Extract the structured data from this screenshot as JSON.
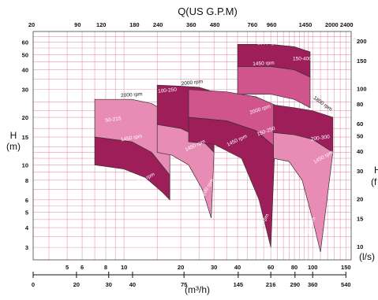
{
  "chart_data": {
    "type": "area",
    "title": "Q(US G.P.M)",
    "left_axis": {
      "label_line1": "H",
      "label_line2": "(m)",
      "scale": "log",
      "range": [
        2.5,
        70
      ],
      "ticks": [
        3,
        4,
        5,
        6,
        8,
        10,
        15,
        20,
        30,
        40,
        50,
        60
      ]
    },
    "right_axis": {
      "label_line1": "H",
      "label_line2": "(f",
      "scale": "log",
      "ticks": [
        10,
        15,
        20,
        30,
        40,
        50,
        60,
        80,
        100,
        150,
        200
      ]
    },
    "top_axis": {
      "scale": "log",
      "ticks": [
        20,
        90,
        120,
        180,
        240,
        360,
        480,
        760,
        960,
        1450,
        2000,
        2400
      ]
    },
    "bottom_axis_ls": {
      "label": "(l/s)",
      "scale": "log",
      "range": [
        3.3,
        160
      ],
      "ticks": [
        5,
        6,
        8,
        10,
        20,
        30,
        40,
        60,
        80,
        100,
        150
      ]
    },
    "bottom_axis_m3h": {
      "label": "(m³/h)",
      "ticks": [
        "0",
        "20",
        "30",
        "40",
        "75",
        "145",
        "216",
        "290",
        "360",
        "540"
      ],
      "tick_values_ls": [
        3.3,
        5.6,
        8.3,
        11.1,
        20.8,
        40.3,
        60,
        80.6,
        100,
        150
      ]
    },
    "colors": {
      "dark": "#9e1e5a",
      "mid": "#d1558d",
      "light": "#e88cb6",
      "grid": "#d14a7a"
    },
    "pumps": [
      {
        "model": "50-215",
        "zones": [
          {
            "rpm": "2000 rpm",
            "color": "light",
            "top": [
              [
                7,
                26
              ],
              [
                11,
                26
              ],
              [
                14,
                24.5
              ],
              [
                17.5,
                21
              ]
            ],
            "bottom": [
              [
                7,
                15
              ],
              [
                11,
                14
              ],
              [
                14,
                12
              ],
              [
                17.5,
                8.6
              ]
            ]
          },
          {
            "rpm": "1450 rpm",
            "color": "dark",
            "top": [
              [
                7,
                15
              ],
              [
                11,
                14
              ],
              [
                14,
                12
              ],
              [
                17.5,
                8.6
              ]
            ],
            "bottom": [
              [
                7,
                10
              ],
              [
                10,
                9.4
              ],
              [
                13,
                8.3
              ],
              [
                16,
                6.7
              ],
              [
                17.5,
                6
              ]
            ]
          }
        ],
        "labels": {
          "model": [
            8.8,
            19
          ],
          "rpm_top": [
            11,
            27.2
          ],
          "rpm_mid": [
            11,
            14.5
          ],
          "rpm_low": [
            13,
            8
          ]
        }
      },
      {
        "model": "100-250",
        "zones": [
          {
            "rpm": "",
            "color": "dark",
            "top": [
              [
                15,
                32
              ],
              [
                20,
                31.5
              ],
              [
                25,
                31
              ],
              [
                30,
                29
              ]
            ],
            "bottom": [
              [
                15,
                18
              ],
              [
                20,
                17
              ],
              [
                25,
                15
              ],
              [
                30,
                12
              ]
            ]
          },
          {
            "rpm": "",
            "color": "light",
            "top": [
              [
                15,
                18
              ],
              [
                20,
                17
              ],
              [
                25,
                15
              ],
              [
                30,
                12
              ]
            ],
            "bottom": [
              [
                15,
                12
              ],
              [
                18,
                11.5
              ],
              [
                22,
                10
              ],
              [
                26,
                7
              ],
              [
                29,
                4.6
              ]
            ]
          }
        ],
        "labels": {
          "model": [
            17,
            29
          ],
          "rpm_top": [
            23,
            32.5
          ],
          "rpm_mid": [
            24,
            13
          ],
          "rpm_low": [
            28,
            7
          ]
        }
      },
      {
        "model": "150-250",
        "zones": [
          {
            "rpm": "",
            "color": "mid",
            "top": [
              [
                22,
                30
              ],
              [
                35,
                29
              ],
              [
                50,
                27
              ],
              [
                63,
                24
              ]
            ],
            "bottom": [
              [
                22,
                20
              ],
              [
                35,
                19
              ],
              [
                50,
                16.5
              ],
              [
                63,
                13
              ]
            ]
          },
          {
            "rpm": "",
            "color": "dark",
            "top": [
              [
                22,
                20
              ],
              [
                35,
                19
              ],
              [
                50,
                16.5
              ],
              [
                63,
                13
              ]
            ],
            "bottom": [
              [
                22,
                14
              ],
              [
                30,
                13.5
              ],
              [
                42,
                11
              ],
              [
                52,
                6
              ],
              [
                60,
                3
              ]
            ]
          }
        ],
        "labels": {
          "model": [
            57,
            16
          ],
          "rpm_top": [
            53,
            22
          ],
          "rpm_mid": [
            40,
            14
          ],
          "rpm_low": [
            55,
            4.2
          ]
        }
      },
      {
        "model": "150-400",
        "zones": [
          {
            "rpm": "1800 rpm",
            "color": "dark",
            "top": [
              [
                40,
                58
              ],
              [
                60,
                58
              ],
              [
                80,
                56
              ],
              [
                97,
                52
              ]
            ],
            "bottom": [
              [
                40,
                42
              ],
              [
                60,
                42
              ],
              [
                80,
                40
              ],
              [
                97,
                36
              ]
            ]
          },
          {
            "rpm": "1450 rpm",
            "color": "mid",
            "top": [
              [
                40,
                42
              ],
              [
                60,
                42
              ],
              [
                80,
                40
              ],
              [
                97,
                36
              ]
            ],
            "bottom": [
              [
                40,
                28
              ],
              [
                60,
                28
              ],
              [
                80,
                26
              ],
              [
                97,
                23
              ]
            ]
          }
        ],
        "labels": {
          "model": [
            88,
            46
          ],
          "rpm_top": [
            58,
            58
          ],
          "rpm_mid": [
            55,
            43
          ]
        }
      },
      {
        "model": "200-300",
        "zones": [
          {
            "rpm": "",
            "color": "dark",
            "top": [
              [
                62,
                24
              ],
              [
                80,
                23
              ],
              [
                100,
                22
              ],
              [
                128,
                20
              ]
            ],
            "bottom": [
              [
                62,
                16
              ],
              [
                80,
                15.5
              ],
              [
                100,
                14.5
              ],
              [
                128,
                12
              ]
            ]
          },
          {
            "rpm": "",
            "color": "light",
            "top": [
              [
                62,
                16
              ],
              [
                80,
                15.5
              ],
              [
                100,
                14.5
              ],
              [
                128,
                12
              ]
            ],
            "bottom": [
              [
                62,
                11
              ],
              [
                75,
                10.5
              ],
              [
                88,
                8
              ],
              [
                100,
                4.5
              ],
              [
                110,
                2.8
              ]
            ]
          }
        ],
        "labels": {
          "model": [
            110,
            14.5
          ],
          "rpm_top": [
            112,
            24
          ],
          "rpm_mid": [
            115,
            11
          ],
          "rpm_low": [
            98,
            4
          ]
        }
      }
    ],
    "zone_labels": {
      "p1_top": "2000 rpm",
      "p1_model": "50-215",
      "p1_mid": "1450 rpm",
      "p1_low": "1200 rpm",
      "p2_top": "2000 rpm",
      "p2_model": "100-250",
      "p2_mid": "1450 rpm",
      "p2_low": "1200 rpm",
      "p3_top": "2000 rpm",
      "p3_model": "150-250",
      "p3_mid": "1450 rpm",
      "p3_low": "1200 rpm",
      "p4_top": "1800 rpm",
      "p4_model": "150-400",
      "p4_mid": "1450 rpm",
      "p5_top": "1800 rpm",
      "p5_model": "200-300",
      "p5_mid": "1450 rpm",
      "p5_low": "1200 rpm"
    }
  }
}
